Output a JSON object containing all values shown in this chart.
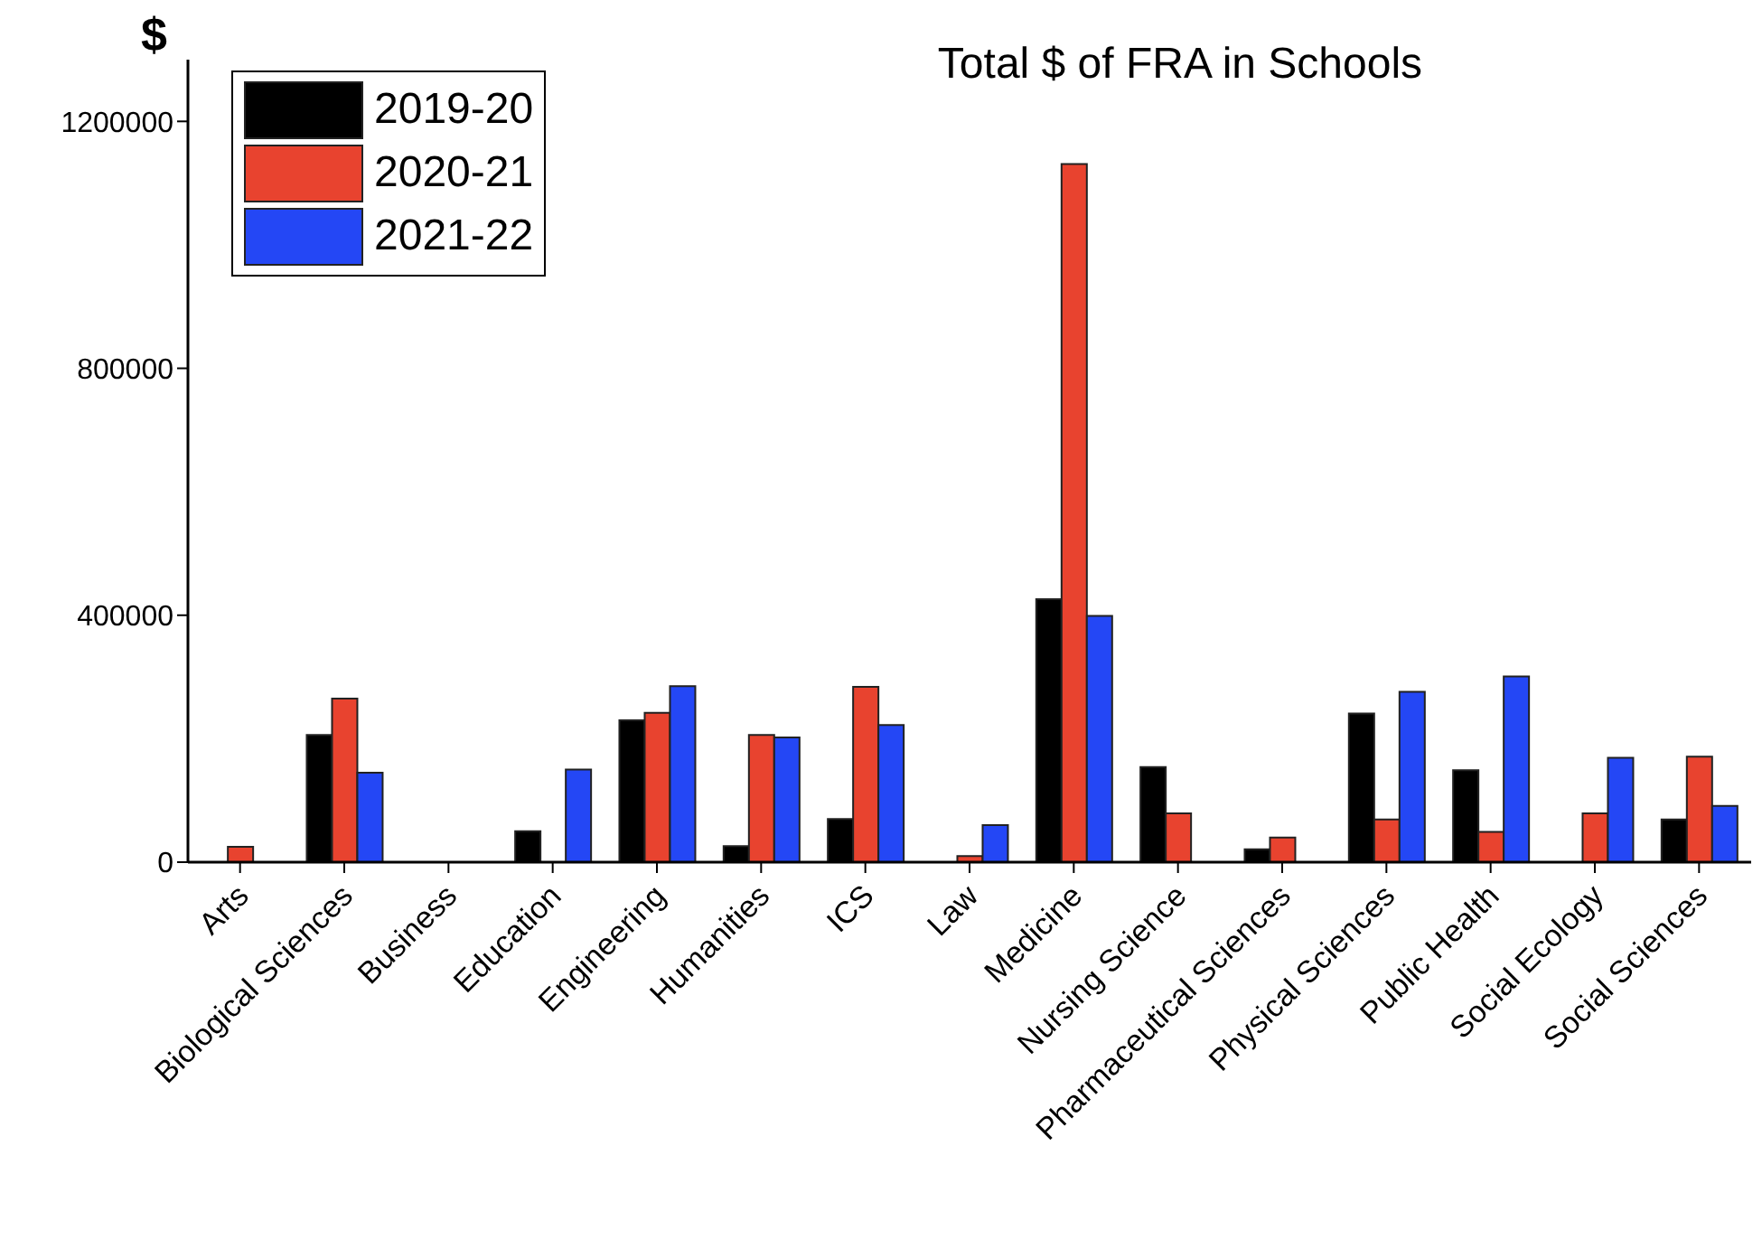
{
  "chart_data": {
    "type": "bar",
    "title": "Total $ of FRA in Schools",
    "ylabel": "$",
    "categories": [
      "Arts",
      "Biological Sciences",
      "Business",
      "Education",
      "Engineering",
      "Humanities",
      "ICS",
      "Law",
      "Medicine",
      "Nursing Science",
      "Pharmaceutical Sciences",
      "Physical Sciences",
      "Public Health",
      "Social Ecology",
      "Social Sciences"
    ],
    "series": [
      {
        "name": "2019-20",
        "color": "#000000",
        "values": [
          null,
          206000,
          null,
          50000,
          230000,
          26000,
          70000,
          null,
          426000,
          154000,
          21000,
          241000,
          149000,
          null,
          69000
        ]
      },
      {
        "name": "2020-21",
        "color": "#e8432f",
        "values": [
          25000,
          265000,
          null,
          null,
          242000,
          206000,
          284000,
          10000,
          1131000,
          79000,
          40000,
          69000,
          49000,
          79000,
          171000
        ]
      },
      {
        "name": "2021-22",
        "color": "#2447f5",
        "values": [
          null,
          145000,
          null,
          150000,
          285000,
          202000,
          222000,
          60000,
          399000,
          null,
          null,
          276000,
          301000,
          169000,
          91000
        ]
      }
    ],
    "ylim": [
      0,
      1300000
    ],
    "yticks": [
      0,
      400000,
      800000,
      1200000
    ],
    "grid": false,
    "legend": "top left"
  }
}
